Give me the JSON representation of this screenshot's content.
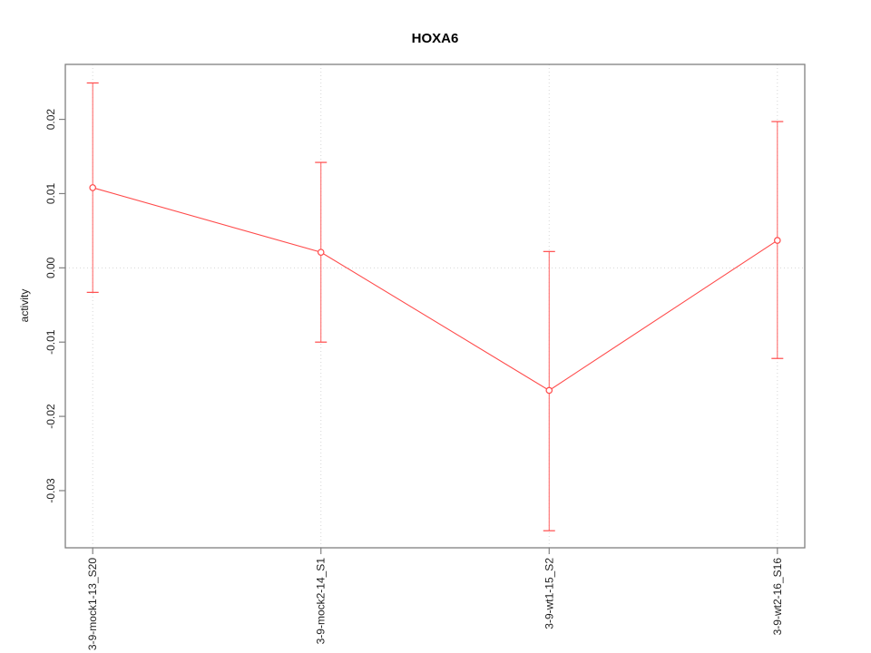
{
  "title": "HOXA6",
  "chart_data": {
    "type": "line",
    "title": "HOXA6",
    "xlabel": "",
    "ylabel": "activity",
    "categories": [
      "3-9-mock1-13_S20",
      "3-9-mock2-14_S1",
      "3-9-wt1-15_S2",
      "3-9-wt2-16_S16"
    ],
    "values": [
      0.0108,
      0.0021,
      -0.0165,
      0.0037
    ],
    "error_low": [
      -0.0033,
      -0.01,
      -0.0354,
      -0.0122
    ],
    "error_high": [
      0.0249,
      0.0142,
      0.0022,
      0.0197
    ],
    "ytick_labels": [
      "0.02",
      "0.01",
      "0.00",
      "-0.01",
      "-0.02",
      "-0.03"
    ],
    "ytick_values": [
      0.02,
      0.01,
      0.0,
      -0.01,
      -0.02,
      -0.03
    ],
    "ylim": [
      -0.0377,
      0.0274
    ],
    "xlim": [
      0.88,
      4.12
    ],
    "grid": "dotted vertical gridline at each category, dotted horizontal line at y=0",
    "legend_position": "none",
    "marker": "open-circle"
  },
  "colors": {
    "series": "#ff4a4a",
    "error_bar": "#ff6060",
    "grid": "#d6d6d6",
    "axis": "#808080",
    "tick_text": "#1f1f1f",
    "background": "#ffffff"
  }
}
